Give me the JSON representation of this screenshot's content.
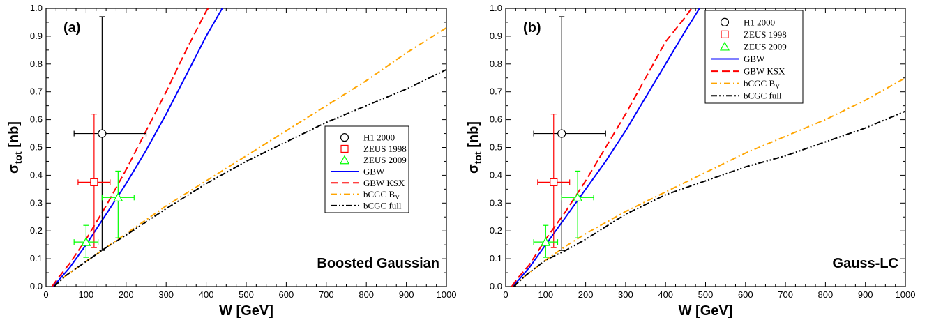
{
  "chart_data": [
    {
      "type": "line",
      "panel_label": "(a)",
      "annotation": "Boosted Gaussian",
      "xlabel": "W [GeV]",
      "ylabel_main": "σ",
      "ylabel_sub": "tot",
      "ylabel_unit": " [nb]",
      "xlim": [
        0,
        1000
      ],
      "ylim": [
        0,
        1.0
      ],
      "xticks": [
        "0",
        "100",
        "200",
        "300",
        "400",
        "500",
        "600",
        "700",
        "800",
        "900",
        "1000"
      ],
      "yticks": [
        "0.0",
        "0.1",
        "0.2",
        "0.3",
        "0.4",
        "0.5",
        "0.6",
        "0.7",
        "0.8",
        "0.9",
        "1.0"
      ],
      "legend_position": "center-right",
      "series": [
        {
          "name": "GBW",
          "style": "solid",
          "color": "#0000ff",
          "points": [
            [
              18,
              0
            ],
            [
              30,
              0.02
            ],
            [
              60,
              0.07
            ],
            [
              100,
              0.15
            ],
            [
              150,
              0.26
            ],
            [
              200,
              0.37
            ],
            [
              250,
              0.49
            ],
            [
              300,
              0.62
            ],
            [
              350,
              0.76
            ],
            [
              400,
              0.9
            ],
            [
              440,
              1.0
            ]
          ]
        },
        {
          "name": "GBW KSX",
          "style": "dash",
          "color": "#ff0000",
          "points": [
            [
              15,
              0
            ],
            [
              30,
              0.03
            ],
            [
              60,
              0.085
            ],
            [
              100,
              0.17
            ],
            [
              150,
              0.29
            ],
            [
              200,
              0.42
            ],
            [
              250,
              0.56
            ],
            [
              300,
              0.7
            ],
            [
              350,
              0.85
            ],
            [
              400,
              0.99
            ],
            [
              405,
              1.0
            ]
          ]
        },
        {
          "name": "bCGC B",
          "name_sub": "V",
          "style": "dashdot",
          "color": "#ffa500",
          "points": [
            [
              20,
              0
            ],
            [
              50,
              0.04
            ],
            [
              100,
              0.09
            ],
            [
              150,
              0.14
            ],
            [
              200,
              0.19
            ],
            [
              300,
              0.29
            ],
            [
              400,
              0.38
            ],
            [
              500,
              0.47
            ],
            [
              600,
              0.56
            ],
            [
              700,
              0.65
            ],
            [
              800,
              0.74
            ],
            [
              900,
              0.84
            ],
            [
              1000,
              0.93
            ]
          ]
        },
        {
          "name": "bCGC full",
          "style": "dashdotdot",
          "color": "#000000",
          "points": [
            [
              20,
              0
            ],
            [
              50,
              0.04
            ],
            [
              100,
              0.09
            ],
            [
              150,
              0.14
            ],
            [
              200,
              0.185
            ],
            [
              300,
              0.28
            ],
            [
              400,
              0.37
            ],
            [
              500,
              0.45
            ],
            [
              600,
              0.52
            ],
            [
              700,
              0.59
            ],
            [
              800,
              0.65
            ],
            [
              900,
              0.71
            ],
            [
              1000,
              0.78
            ]
          ]
        }
      ],
      "data_points": [
        {
          "name": "H1 2000",
          "marker": "circle",
          "color": "#000000",
          "x": 140,
          "y": 0.55,
          "xerr": [
            70,
            250
          ],
          "yerr": [
            0.13,
            0.97
          ]
        },
        {
          "name": "ZEUS 1998",
          "marker": "square",
          "color": "#ff0000",
          "x": 120,
          "y": 0.375,
          "xerr": [
            80,
            160
          ],
          "yerr": [
            0.14,
            0.62
          ]
        },
        {
          "name": "ZEUS 2009",
          "marker": "triangle",
          "color": "#00ff00",
          "points": [
            {
              "x": 100,
              "y": 0.16,
              "xerr": [
                70,
                130
              ],
              "yerr": [
                0.105,
                0.22
              ]
            },
            {
              "x": 180,
              "y": 0.32,
              "xerr": [
                140,
                220
              ],
              "yerr": [
                0.175,
                0.415
              ]
            }
          ]
        }
      ]
    },
    {
      "type": "line",
      "panel_label": "(b)",
      "annotation": "Gauss-LC",
      "xlabel": "W [GeV]",
      "ylabel_main": "σ",
      "ylabel_sub": "tot",
      "ylabel_unit": " [nb]",
      "xlim": [
        0,
        1000
      ],
      "ylim": [
        0,
        1.0
      ],
      "xticks": [
        "0",
        "100",
        "200",
        "300",
        "400",
        "500",
        "600",
        "700",
        "800",
        "900",
        "1000"
      ],
      "yticks": [
        "0.0",
        "0.1",
        "0.2",
        "0.3",
        "0.4",
        "0.5",
        "0.6",
        "0.7",
        "0.8",
        "0.9",
        "1.0"
      ],
      "legend_position": "top-center",
      "series": [
        {
          "name": "GBW",
          "style": "solid",
          "color": "#0000ff",
          "points": [
            [
              18,
              0
            ],
            [
              30,
              0.02
            ],
            [
              60,
              0.07
            ],
            [
              100,
              0.15
            ],
            [
              150,
              0.25
            ],
            [
              200,
              0.35
            ],
            [
              250,
              0.45
            ],
            [
              300,
              0.56
            ],
            [
              350,
              0.68
            ],
            [
              400,
              0.8
            ],
            [
              450,
              0.92
            ],
            [
              485,
              1.0
            ]
          ]
        },
        {
          "name": "GBW KSX",
          "style": "dash",
          "color": "#ff0000",
          "points": [
            [
              15,
              0
            ],
            [
              30,
              0.03
            ],
            [
              60,
              0.08
            ],
            [
              100,
              0.17
            ],
            [
              150,
              0.27
            ],
            [
              200,
              0.38
            ],
            [
              250,
              0.5
            ],
            [
              300,
              0.62
            ],
            [
              350,
              0.75
            ],
            [
              400,
              0.88
            ],
            [
              450,
              0.97
            ],
            [
              465,
              1.0
            ]
          ]
        },
        {
          "name": "bCGC B",
          "name_sub": "V",
          "style": "dashdot",
          "color": "#ffa500",
          "points": [
            [
              20,
              0
            ],
            [
              50,
              0.04
            ],
            [
              100,
              0.095
            ],
            [
              150,
              0.145
            ],
            [
              200,
              0.19
            ],
            [
              300,
              0.27
            ],
            [
              400,
              0.34
            ],
            [
              500,
              0.41
            ],
            [
              600,
              0.48
            ],
            [
              700,
              0.54
            ],
            [
              800,
              0.6
            ],
            [
              900,
              0.67
            ],
            [
              1000,
              0.75
            ]
          ]
        },
        {
          "name": "bCGC full",
          "style": "dashdotdot",
          "color": "#000000",
          "points": [
            [
              20,
              0
            ],
            [
              50,
              0.04
            ],
            [
              100,
              0.095
            ],
            [
              150,
              0.13
            ],
            [
              200,
              0.17
            ],
            [
              300,
              0.26
            ],
            [
              400,
              0.33
            ],
            [
              500,
              0.38
            ],
            [
              600,
              0.43
            ],
            [
              700,
              0.47
            ],
            [
              800,
              0.52
            ],
            [
              900,
              0.57
            ],
            [
              1000,
              0.63
            ]
          ]
        }
      ],
      "data_points": [
        {
          "name": "H1 2000",
          "marker": "circle",
          "color": "#000000",
          "x": 140,
          "y": 0.55,
          "xerr": [
            70,
            250
          ],
          "yerr": [
            0.13,
            0.97
          ]
        },
        {
          "name": "ZEUS 1998",
          "marker": "square",
          "color": "#ff0000",
          "x": 120,
          "y": 0.375,
          "xerr": [
            80,
            160
          ],
          "yerr": [
            0.14,
            0.62
          ]
        },
        {
          "name": "ZEUS 2009",
          "marker": "triangle",
          "color": "#00ff00",
          "points": [
            {
              "x": 100,
              "y": 0.16,
              "xerr": [
                70,
                130
              ],
              "yerr": [
                0.105,
                0.22
              ]
            },
            {
              "x": 180,
              "y": 0.32,
              "xerr": [
                140,
                220
              ],
              "yerr": [
                0.175,
                0.415
              ]
            }
          ]
        }
      ]
    }
  ]
}
